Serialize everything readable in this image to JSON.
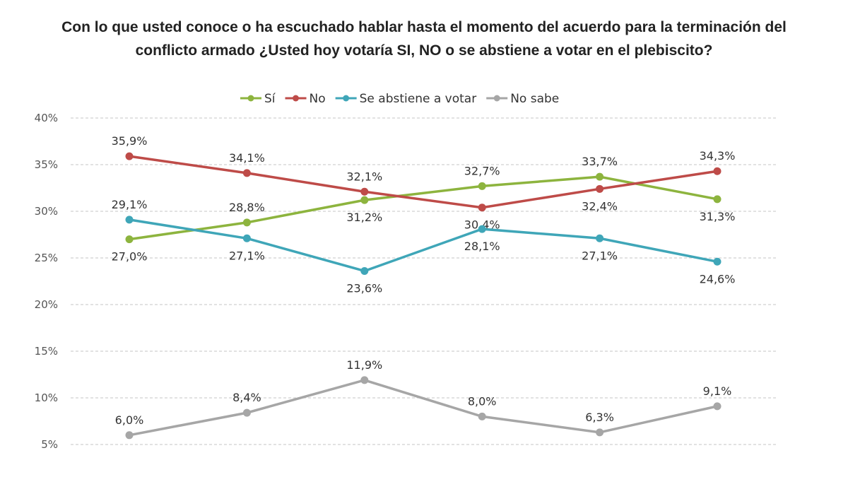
{
  "chart_data": {
    "type": "line",
    "title_lines": [
      "Con lo que usted conoce o ha escuchado hablar hasta el momento del acuerdo para la terminación del",
      "conflicto armado ¿Usted hoy votaría SI, NO o se abstiene a votar en el plebiscito?"
    ],
    "xlabel": "",
    "ylabel": "",
    "ylim": [
      5,
      40
    ],
    "yticks": [
      "5%",
      "10%",
      "15%",
      "20%",
      "25%",
      "30%",
      "35%",
      "40%"
    ],
    "ytick_values": [
      5,
      10,
      15,
      20,
      25,
      30,
      35,
      40
    ],
    "grid": true,
    "legend_position": "top-center",
    "points": 6,
    "series": [
      {
        "name": "Sí",
        "color": "#8db43e",
        "values": [
          27.0,
          28.8,
          31.2,
          32.7,
          33.7,
          31.3
        ],
        "labels": [
          "27,0%",
          "28,8%",
          "31,2%",
          "32,7%",
          "33,7%",
          "31,3%"
        ],
        "label_side": [
          "below",
          "above",
          "below",
          "above",
          "above",
          "below"
        ]
      },
      {
        "name": "No",
        "color": "#be4b48",
        "values": [
          35.9,
          34.1,
          32.1,
          30.4,
          32.4,
          34.3
        ],
        "labels": [
          "35,9%",
          "34,1%",
          "32,1%",
          "30,4%",
          "32,4%",
          "34,3%"
        ],
        "label_side": [
          "above",
          "above",
          "above",
          "below",
          "below",
          "above"
        ]
      },
      {
        "name": "Se abstiene a votar",
        "color": "#3fa6b8",
        "values": [
          29.1,
          27.1,
          23.6,
          28.1,
          27.1,
          24.6
        ],
        "labels": [
          "29,1%",
          "27,1%",
          "23,6%",
          "28,1%",
          "27,1%",
          "24,6%"
        ],
        "label_side": [
          "above",
          "below",
          "below",
          "below",
          "below",
          "below"
        ]
      },
      {
        "name": "No sabe",
        "color": "#a6a6a6",
        "values": [
          6.0,
          8.4,
          11.9,
          8.0,
          6.3,
          9.1
        ],
        "labels": [
          "6,0%",
          "8,4%",
          "11,9%",
          "8,0%",
          "6,3%",
          "9,1%"
        ],
        "label_side": [
          "above",
          "above",
          "above",
          "above",
          "above",
          "above"
        ]
      }
    ]
  }
}
